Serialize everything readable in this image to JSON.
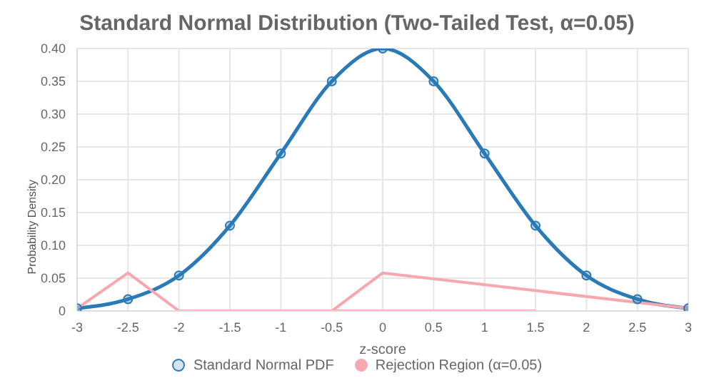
{
  "chart_data": {
    "type": "line",
    "title": "Standard Normal Distribution (Two-Tailed Test, α=0.05)",
    "xlabel": "z-score",
    "ylabel": "Probability Density",
    "x": [
      -3,
      -2.5,
      -2,
      -1.5,
      -1,
      -0.5,
      0,
      0.5,
      1,
      1.5,
      2,
      2.5,
      3
    ],
    "series": [
      {
        "name": "Standard Normal PDF",
        "color": "#2a7ab8",
        "marker": "circle",
        "values": [
          0.004,
          0.018,
          0.054,
          0.13,
          0.24,
          0.35,
          0.4,
          0.35,
          0.24,
          0.13,
          0.054,
          0.018,
          0.004
        ]
      },
      {
        "name": "Rejection Region (α=0.05)",
        "color": "#f7a8ae",
        "marker": "none",
        "x": [
          -3,
          -2.5,
          -2,
          -0.5,
          0,
          3
        ],
        "values": [
          0.004,
          0.058,
          0,
          0,
          0.058,
          0.004
        ]
      },
      {
        "color": "#f7a8ae",
        "marker": "none",
        "x": [
          -2,
          1.5
        ],
        "values": [
          0,
          0
        ]
      }
    ],
    "xlim": [
      -3,
      3
    ],
    "xticks": [
      -3,
      -2.5,
      -2,
      -1.5,
      -1,
      -0.5,
      0,
      0.5,
      1,
      1.5,
      2,
      2.5,
      3
    ],
    "ylim": [
      0,
      0.4
    ],
    "yticks": [
      0,
      0.05,
      {
        "value": 0.1,
        "label": "0.10"
      },
      0.15,
      {
        "value": 0.2,
        "label": "0.20"
      },
      0.25,
      {
        "value": 0.3,
        "label": "0.30"
      },
      0.35,
      {
        "value": 0.4,
        "label": "0.40"
      }
    ],
    "grid": true,
    "legend": "bottom"
  }
}
